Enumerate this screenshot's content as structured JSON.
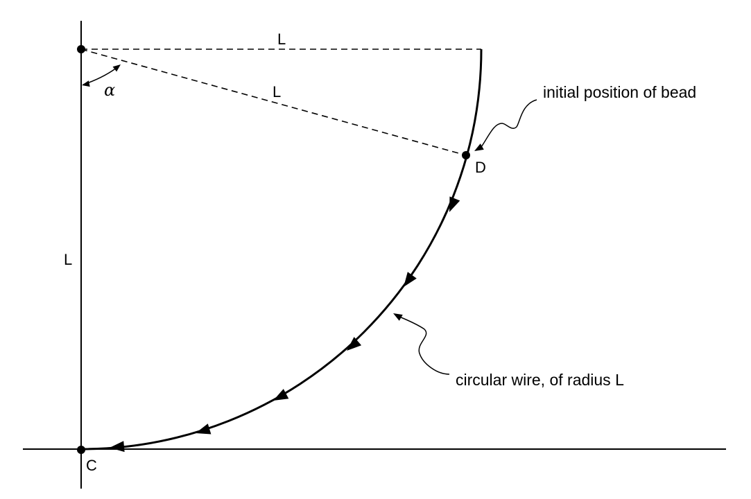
{
  "labels": {
    "top_radius": "L",
    "slant_radius": "L",
    "vertical_length": "L",
    "angle": "α",
    "point_d": "D",
    "point_c": "C"
  },
  "annotations": {
    "bead": "initial position of bead",
    "wire": "circular wire, of radius L"
  },
  "colors": {
    "ink": "#000000",
    "background": "#ffffff"
  }
}
